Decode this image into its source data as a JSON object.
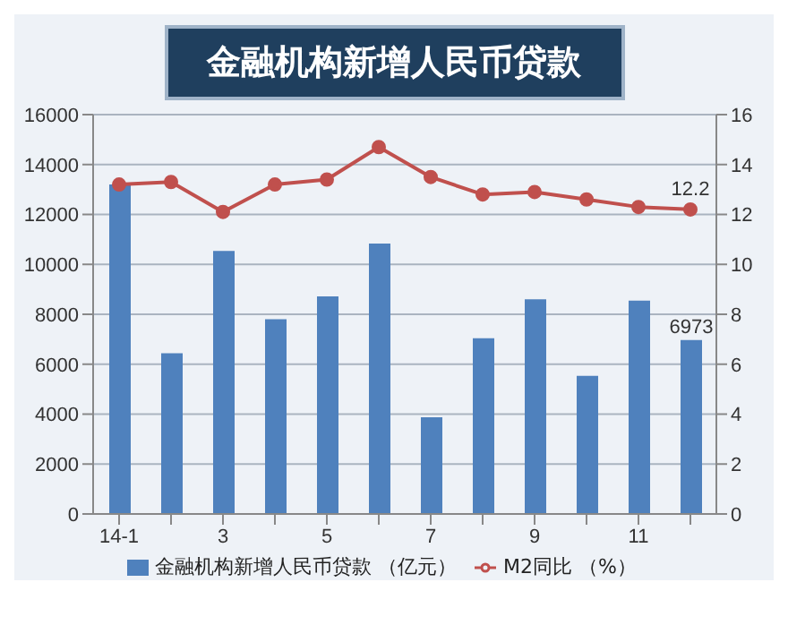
{
  "chart_data": {
    "type": "bar",
    "title": "金融机构新增人民币贷款",
    "categories": [
      "14-1",
      null,
      "3",
      null,
      "5",
      null,
      "7",
      null,
      "9",
      null,
      "11",
      null
    ],
    "series": [
      {
        "name": "金融机构新增人民币贷款 （亿元）",
        "color": "#4f81bd",
        "values": [
          13200,
          6440,
          10540,
          7800,
          8720,
          10830,
          3870,
          7040,
          8600,
          5530,
          8550,
          6973
        ],
        "value_labels": [
          null,
          null,
          null,
          null,
          null,
          null,
          null,
          null,
          null,
          null,
          null,
          "6973"
        ]
      },
      {
        "name": "M2同比 （%）",
        "type": "line",
        "axis": "y2",
        "color": "#c0504d",
        "marker": "circle",
        "values": [
          13.2,
          13.3,
          12.1,
          13.2,
          13.4,
          14.7,
          13.5,
          12.8,
          12.9,
          12.6,
          12.3,
          12.2
        ],
        "value_labels": [
          null,
          null,
          null,
          null,
          null,
          null,
          null,
          null,
          null,
          null,
          null,
          "12.2"
        ]
      }
    ],
    "ylim": [
      0,
      16000
    ],
    "yticks": [
      0,
      2000,
      4000,
      6000,
      8000,
      10000,
      12000,
      14000,
      16000
    ],
    "y2lim": [
      0,
      16
    ],
    "y2ticks": [
      0,
      2,
      4,
      6,
      8,
      10,
      12,
      14,
      16
    ],
    "grid": "y",
    "legend": "bottom"
  }
}
